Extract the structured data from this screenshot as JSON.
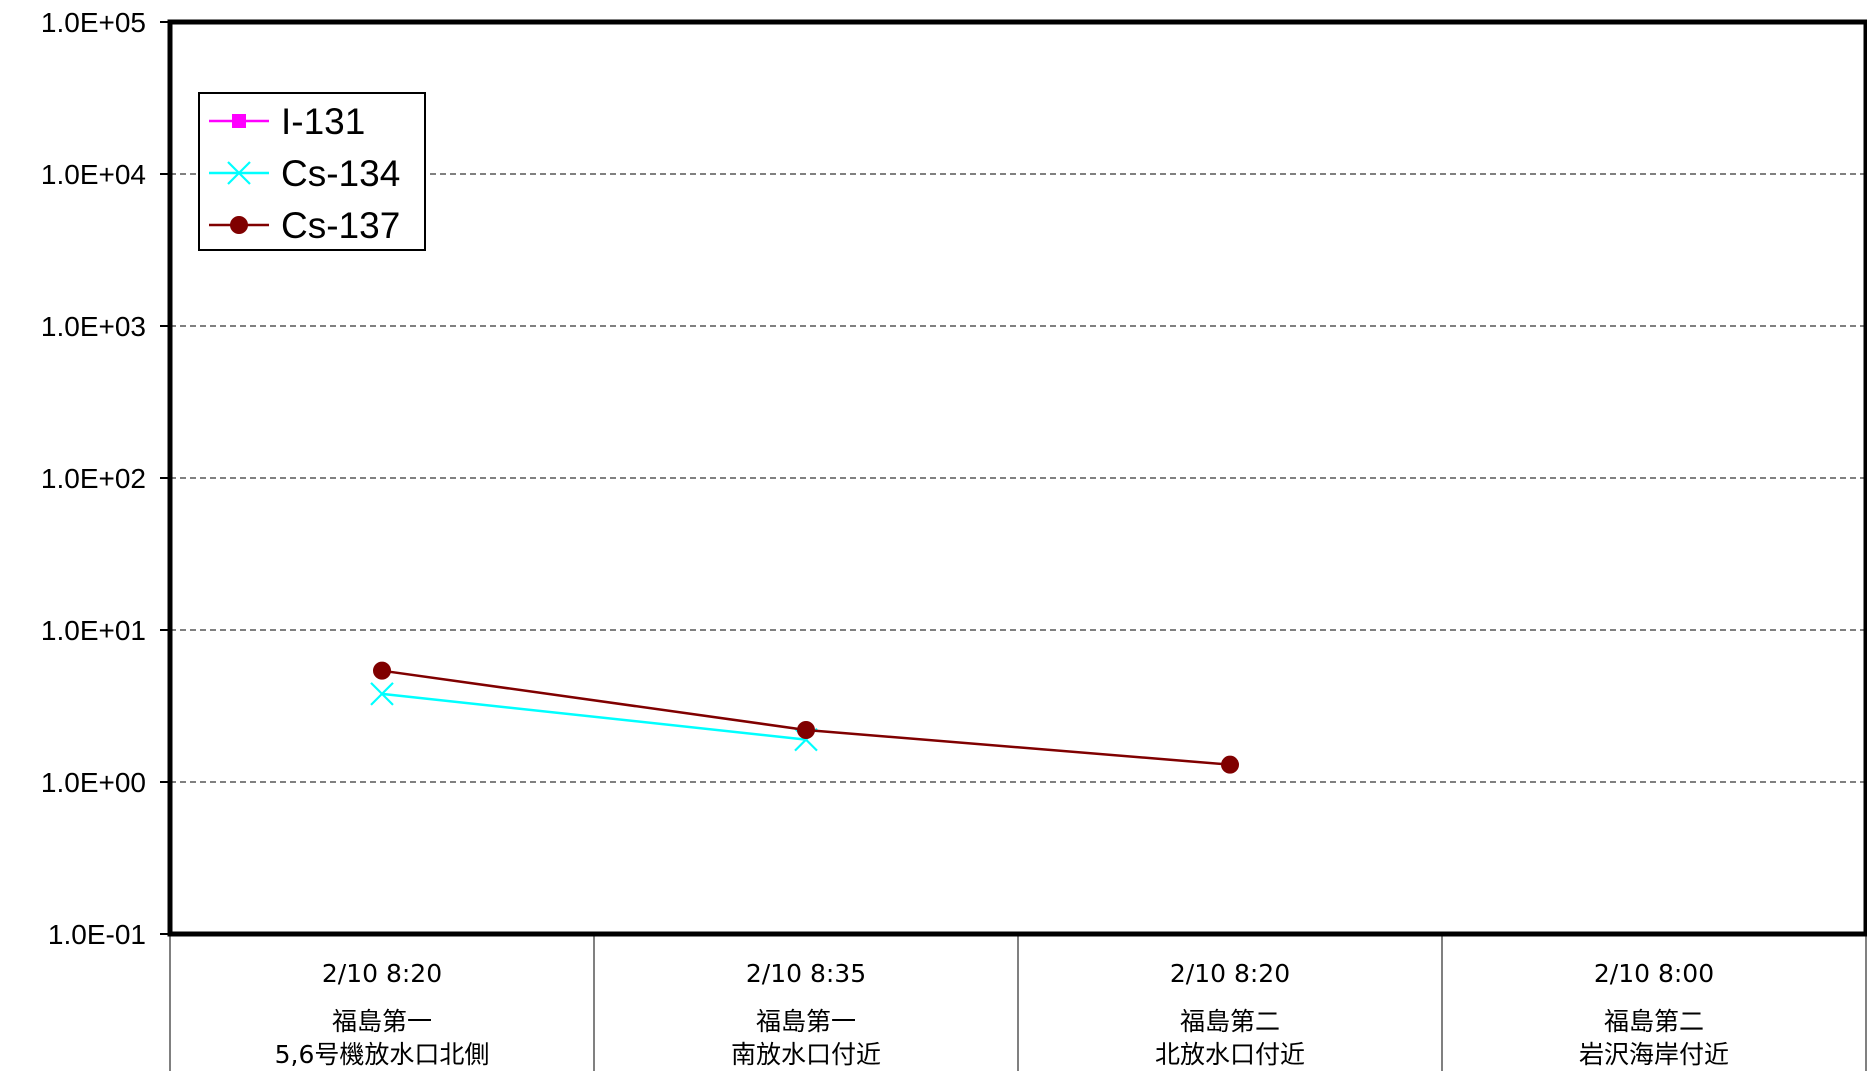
{
  "chart_data": {
    "type": "line",
    "y_scale": "log",
    "ylim": [
      0.1,
      100000
    ],
    "y_tick_values": [
      0.1,
      1,
      10,
      100,
      1000,
      10000,
      100000
    ],
    "y_tick_labels": [
      "1.0E-01",
      "1.0E+00",
      "1.0E+01",
      "1.0E+02",
      "1.0E+03",
      "1.0E+04",
      "1.0E+05"
    ],
    "grid": "horizontal dashed",
    "legend_position": "top-left",
    "categories": [
      {
        "time": "2/10 8:20",
        "site": "福島第一",
        "location": "5,6号機放水口北側"
      },
      {
        "time": "2/10 8:35",
        "site": "福島第一",
        "location": "南放水口付近"
      },
      {
        "time": "2/10 8:20",
        "site": "福島第二",
        "location": "北放水口付近"
      },
      {
        "time": "2/10 8:00",
        "site": "福島第二",
        "location": "岩沢海岸付近"
      }
    ],
    "series": [
      {
        "name": "I-131",
        "color": "#ff00ff",
        "marker": "square",
        "values": [
          null,
          null,
          null,
          null
        ]
      },
      {
        "name": "Cs-134",
        "color": "#00ffff",
        "marker": "x",
        "values": [
          3.8,
          1.9,
          null,
          null
        ]
      },
      {
        "name": "Cs-137",
        "color": "#800000",
        "marker": "circle",
        "values": [
          5.4,
          2.2,
          1.3,
          null
        ]
      }
    ]
  }
}
